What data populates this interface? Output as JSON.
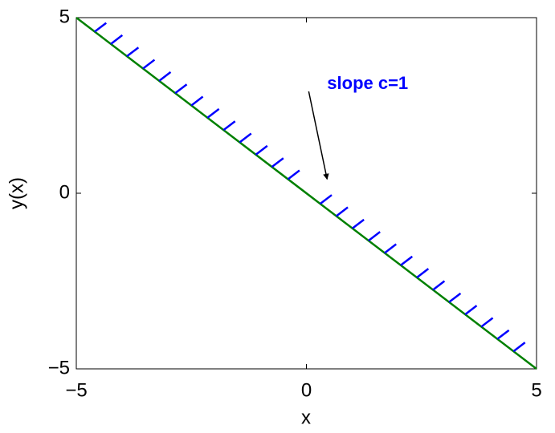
{
  "chart_data": {
    "type": "line",
    "x_label": "x",
    "y_label": "y(x)",
    "xlim": [
      -5,
      5
    ],
    "ylim": [
      -5,
      5
    ],
    "xticks": [
      {
        "value": -5,
        "label": "−5"
      },
      0,
      5
    ],
    "yticks": [
      {
        "value": -5,
        "label": "−5"
      },
      0,
      5
    ],
    "series": [
      {
        "color": "#008000",
        "x": [
          -5,
          5
        ],
        "values": [
          5,
          -5
        ]
      }
    ],
    "slope_field": {
      "color": "#0000ff",
      "slope": 1,
      "length": 0.25,
      "x": [
        -4.6,
        -4.25,
        -3.9,
        -3.55,
        -3.2,
        -2.85,
        -2.5,
        -2.15,
        -1.8,
        -1.45,
        -1.1,
        -0.75,
        -0.4,
        0.3,
        0.65,
        1.0,
        1.35,
        1.7,
        2.05,
        2.4,
        2.75,
        3.1,
        3.45,
        3.8,
        4.15,
        4.5
      ],
      "values": [
        4.6,
        4.25,
        3.9,
        3.55,
        3.2,
        2.85,
        2.5,
        2.15,
        1.8,
        1.45,
        1.1,
        0.75,
        0.4,
        -0.3,
        -0.65,
        -1.0,
        -1.35,
        -1.7,
        -2.05,
        -2.4,
        -2.75,
        -3.1,
        -3.45,
        -3.8,
        -4.15,
        -4.5
      ]
    },
    "annotation": {
      "text": "slope c=1",
      "color": "#0000ff",
      "x": 0.45,
      "y": 3.1,
      "arrow_from": [
        0.05,
        2.9
      ],
      "arrow_to": [
        0.45,
        0.4
      ]
    }
  }
}
